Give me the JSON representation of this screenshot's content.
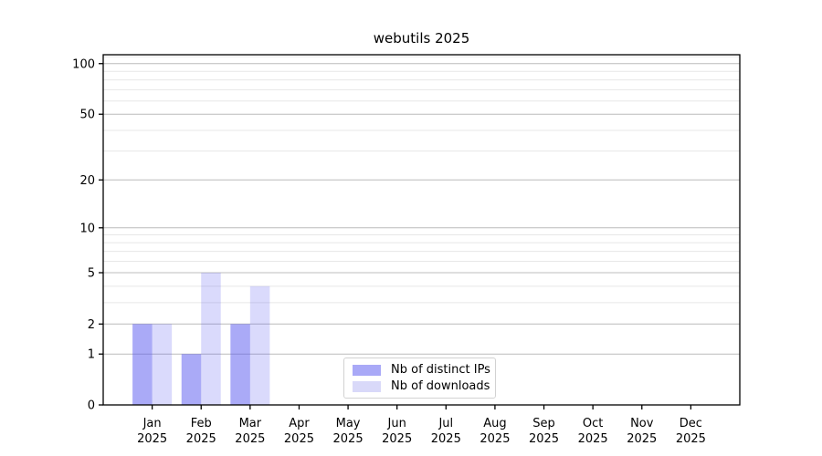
{
  "figure": {
    "background": "#ffffff"
  },
  "chart_data": {
    "type": "bar",
    "title": "webutils 2025",
    "categories": [
      "Jan",
      "Feb",
      "Mar",
      "Apr",
      "May",
      "Jun",
      "Jul",
      "Aug",
      "Sep",
      "Oct",
      "Nov",
      "Dec"
    ],
    "year": "2025",
    "series": [
      {
        "name": "Nb of distinct IPs",
        "values": [
          2,
          1,
          2,
          0,
          0,
          0,
          0,
          0,
          0,
          0,
          0,
          0
        ],
        "color": "rgba(85,85,240,0.50)",
        "legend_color": "#a9a9f7"
      },
      {
        "name": "Nb of downloads",
        "values": [
          2,
          5,
          4,
          0,
          0,
          0,
          0,
          0,
          0,
          0,
          0,
          0
        ],
        "color": "rgba(85,85,240,0.22)",
        "legend_color": "#d9d9f9"
      }
    ],
    "xlabel": "",
    "ylabel": "",
    "yscale": "log1p",
    "ylim": [
      0,
      113
    ],
    "ytick_labels": [
      0,
      1,
      2,
      5,
      10,
      20,
      50,
      100
    ],
    "yticks_minor": [
      3,
      4,
      6,
      7,
      8,
      9,
      30,
      40,
      60,
      70,
      80,
      90,
      110
    ],
    "grid": {
      "enabled": true,
      "major_color": "#bcbcbc",
      "minor_color": "#e7e7e7"
    },
    "axis_color": "#000000",
    "legend": {
      "position": "lower-center",
      "border_color": "#d2d2d2"
    }
  }
}
